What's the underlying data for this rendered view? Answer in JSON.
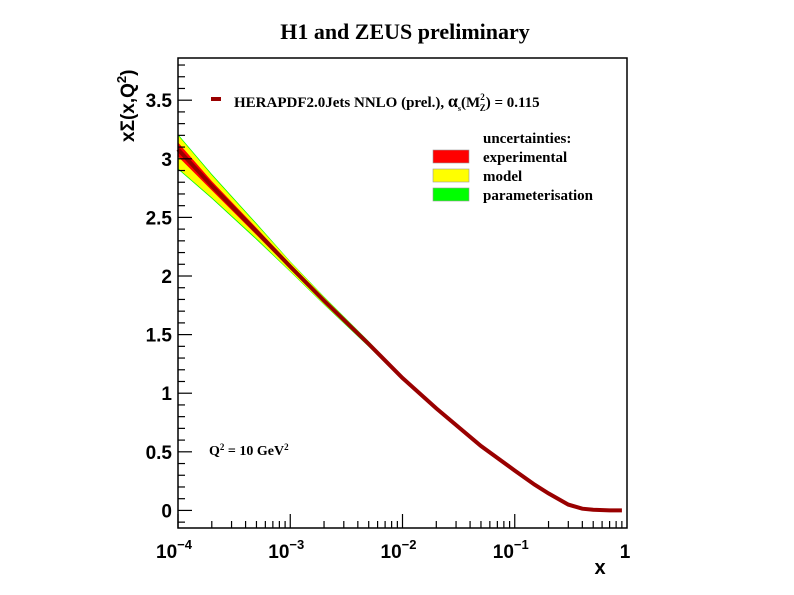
{
  "chart_data": {
    "type": "line",
    "title": "H1 and ZEUS preliminary",
    "xlabel": "x",
    "ylabel": "xΣ(x,Q²)",
    "xscale": "log",
    "xlim": [
      0.0001,
      1
    ],
    "ylim": [
      -0.15,
      3.86
    ],
    "grid": false,
    "x_ticks": [
      {
        "value": 0.0001,
        "base": "10",
        "exp": "−4"
      },
      {
        "value": 0.001,
        "base": "10",
        "exp": "−3"
      },
      {
        "value": 0.01,
        "base": "10",
        "exp": "−2"
      },
      {
        "value": 0.1,
        "base": "10",
        "exp": "−1"
      },
      {
        "value": 1,
        "base": "1",
        "exp": ""
      }
    ],
    "y_ticks": [
      {
        "value": 0,
        "label": "0"
      },
      {
        "value": 0.5,
        "label": "0.5"
      },
      {
        "value": 1,
        "label": "1"
      },
      {
        "value": 1.5,
        "label": "1.5"
      },
      {
        "value": 2,
        "label": "2"
      },
      {
        "value": 2.5,
        "label": "2.5"
      },
      {
        "value": 3,
        "label": "3"
      },
      {
        "value": 3.5,
        "label": "3.5"
      }
    ],
    "series": [
      {
        "name": "HERAPDF2.0Jets NNLO (prel.), αs(M²Z) = 0.115",
        "color": "#990000",
        "x": [
          0.0001,
          0.0002,
          0.0005,
          0.001,
          0.002,
          0.005,
          0.01,
          0.02,
          0.05,
          0.1,
          0.15,
          0.2,
          0.3,
          0.4,
          0.5,
          0.7,
          0.9
        ],
        "central": [
          3.08,
          2.77,
          2.38,
          2.08,
          1.79,
          1.42,
          1.13,
          0.87,
          0.55,
          0.34,
          0.22,
          0.145,
          0.05,
          0.015,
          0.005,
          0.0,
          0.0
        ],
        "experimental_band": [
          [
            3.02,
            3.14
          ],
          [
            2.73,
            2.81
          ],
          [
            2.35,
            2.41
          ],
          [
            2.06,
            2.1
          ],
          [
            1.775,
            1.805
          ],
          [
            1.41,
            1.43
          ],
          [
            1.122,
            1.138
          ],
          [
            0.865,
            0.875
          ],
          [
            0.546,
            0.554
          ],
          [
            0.337,
            0.343
          ],
          [
            0.218,
            0.222
          ],
          [
            0.143,
            0.147
          ],
          [
            0.049,
            0.051
          ],
          [
            0.014,
            0.016
          ],
          [
            0.004,
            0.006
          ],
          [
            0.0,
            0.0
          ],
          [
            0.0,
            0.0
          ]
        ],
        "model_band": [
          [
            2.92,
            3.2
          ],
          [
            2.67,
            2.86
          ],
          [
            2.32,
            2.44
          ],
          [
            2.04,
            2.12
          ],
          [
            1.76,
            1.82
          ],
          [
            1.4,
            1.44
          ],
          [
            1.115,
            1.145
          ],
          [
            0.86,
            0.88
          ],
          [
            0.544,
            0.556
          ],
          [
            0.336,
            0.344
          ],
          [
            0.217,
            0.223
          ],
          [
            0.142,
            0.148
          ],
          [
            0.048,
            0.052
          ],
          [
            0.014,
            0.016
          ],
          [
            0.004,
            0.006
          ],
          [
            0.0,
            0.0
          ],
          [
            0.0,
            0.0
          ]
        ],
        "parameterisation_band": [
          [
            2.91,
            3.21
          ],
          [
            2.66,
            2.87
          ],
          [
            2.31,
            2.45
          ],
          [
            2.035,
            2.125
          ],
          [
            1.755,
            1.825
          ],
          [
            1.395,
            1.445
          ],
          [
            1.113,
            1.147
          ],
          [
            0.858,
            0.882
          ],
          [
            0.543,
            0.557
          ],
          [
            0.335,
            0.345
          ],
          [
            0.216,
            0.224
          ],
          [
            0.141,
            0.149
          ],
          [
            0.048,
            0.052
          ],
          [
            0.014,
            0.016
          ],
          [
            0.004,
            0.006
          ],
          [
            0.0,
            0.0
          ],
          [
            0.0,
            0.0
          ]
        ]
      }
    ],
    "legend": {
      "entry": "HERAPDF2.0Jets NNLO (prel.), ",
      "alpha": "α",
      "alpha_sub": "s",
      "alpha_arg_open": "(M",
      "alpha_arg_sup": "2",
      "alpha_arg_sub": "Z",
      "alpha_arg_close": ") = 0.115",
      "placement": "top-right",
      "uncertainties_title": "uncertainties:",
      "items": [
        {
          "label": "experimental",
          "color": "#ff0000"
        },
        {
          "label": "model",
          "color": "#ffff00"
        },
        {
          "label": "parameterisation",
          "color": "#00ff00"
        }
      ]
    },
    "annotation": {
      "q_prefix": "Q",
      "q_sup": "2",
      "q_mid": " = 10 GeV",
      "q_sup2": "2"
    },
    "ylabel_parts": {
      "main": "xΣ(x,Q",
      "sup": "2",
      "close": ")"
    }
  }
}
